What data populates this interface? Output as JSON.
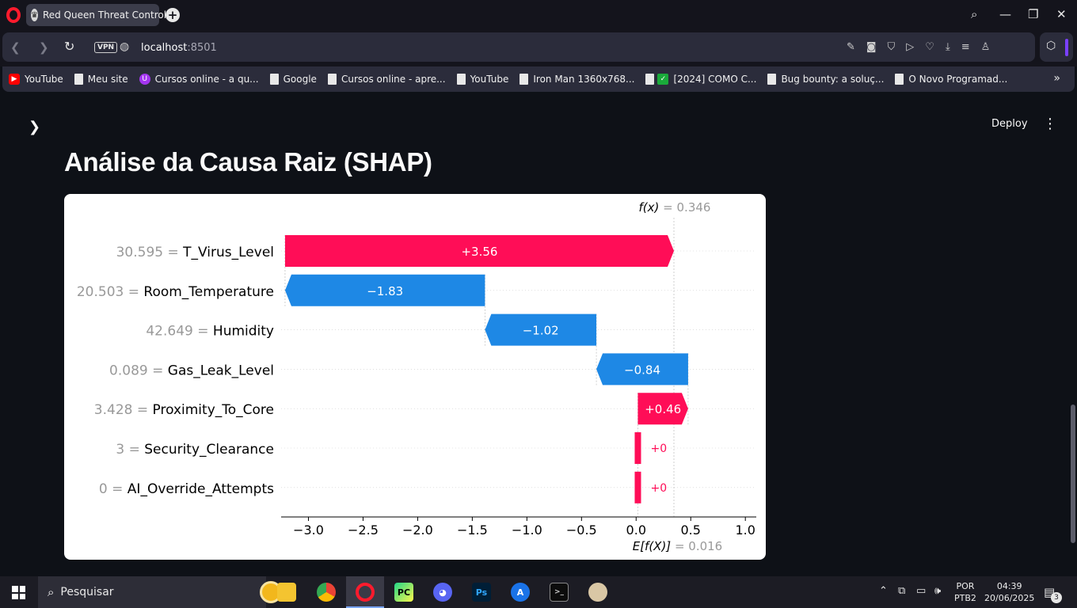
{
  "browser": {
    "tab_title": "Red Queen Threat Control",
    "url_host": "localhost",
    "url_port": ":8501",
    "vpn_label": "VPN",
    "bookmarks": [
      {
        "label": "YouTube",
        "icon": "youtube-icon"
      },
      {
        "label": "Meu site",
        "icon": "page-icon"
      },
      {
        "label": "Cursos online - a qu...",
        "icon": "udemy-icon"
      },
      {
        "label": "Google",
        "icon": "page-icon"
      },
      {
        "label": "Cursos online - apre...",
        "icon": "page-icon"
      },
      {
        "label": "YouTube",
        "icon": "page-icon"
      },
      {
        "label": "Iron Man 1360x768...",
        "icon": "page-icon"
      },
      {
        "label": "[2024] COMO C...",
        "icon": "checkmark-icon"
      },
      {
        "label": "Bug bounty: a soluç...",
        "icon": "page-icon"
      },
      {
        "label": "O Novo Programad...",
        "icon": "page-icon"
      }
    ]
  },
  "app": {
    "deploy_label": "Deploy",
    "heading": "Análise da Causa Raiz (SHAP)"
  },
  "chart_data": {
    "type": "waterfall",
    "fx_label": "f(x)",
    "fx_value": "0.346",
    "ex_label": "E[f(X)]",
    "ex_value": "0.016",
    "base_value": 0.016,
    "final_value": 0.346,
    "xlim": [
      -3.25,
      1.1
    ],
    "x_ticks": [
      -3.0,
      -2.5,
      -2.0,
      -1.5,
      -1.0,
      -0.5,
      0.0,
      0.5,
      1.0
    ],
    "x_tick_labels": [
      "−3.0",
      "−2.5",
      "−2.0",
      "−1.5",
      "−1.0",
      "−0.5",
      "0.0",
      "0.5",
      "1.0"
    ],
    "features": [
      {
        "feature": "T_Virus_Level",
        "value": "30.595",
        "shap": 3.56,
        "label": "+3.56"
      },
      {
        "feature": "Room_Temperature",
        "value": "20.503",
        "shap": -1.83,
        "label": "−1.83"
      },
      {
        "feature": "Humidity",
        "value": "42.649",
        "shap": -1.02,
        "label": "−1.02"
      },
      {
        "feature": "Gas_Leak_Level",
        "value": "0.089",
        "shap": -0.84,
        "label": "−0.84"
      },
      {
        "feature": "Proximity_To_Core",
        "value": "3.428",
        "shap": 0.46,
        "label": "+0.46"
      },
      {
        "feature": "Security_Clearance",
        "value": "3",
        "shap": 0.0,
        "label": "+0"
      },
      {
        "feature": "AI_Override_Attempts",
        "value": "0",
        "shap": 0.0,
        "label": "+0"
      }
    ],
    "colors": {
      "positive": "#ff0d57",
      "negative": "#1e88e5"
    }
  },
  "taskbar": {
    "search_placeholder": "Pesquisar",
    "lang_top": "POR",
    "lang_bottom": "PTB2",
    "time": "04:39",
    "date": "20/06/2025",
    "notification_count": "3"
  }
}
